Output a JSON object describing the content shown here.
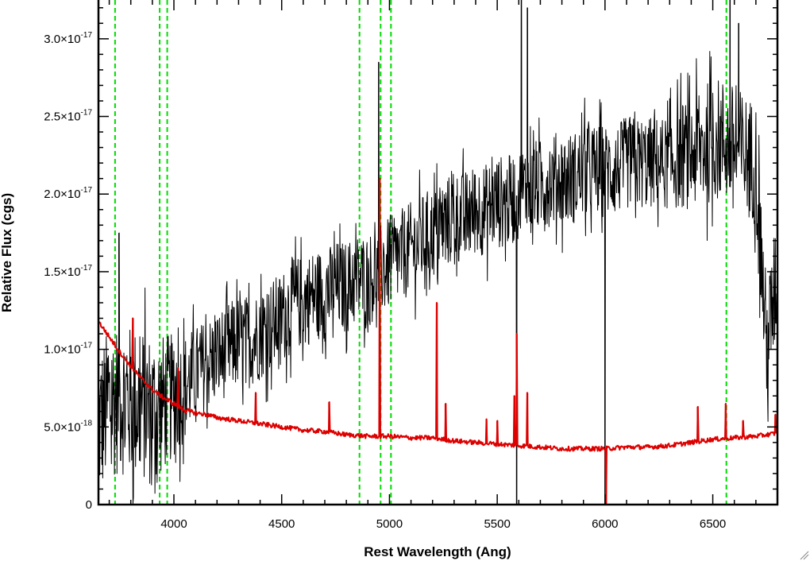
{
  "chart_data": {
    "type": "line",
    "title": "",
    "xlabel": "Rest Wavelength (Ang)",
    "ylabel": "Relative Flux (cgs)",
    "xlim": [
      3650,
      6800
    ],
    "ylim": [
      0,
      3.25e-17
    ],
    "x_ticks": [
      {
        "value": 4000,
        "label": "4000"
      },
      {
        "value": 4500,
        "label": "4500"
      },
      {
        "value": 5000,
        "label": "5000"
      },
      {
        "value": 5500,
        "label": "5500"
      },
      {
        "value": 6000,
        "label": "6000"
      },
      {
        "value": 6500,
        "label": "6500"
      }
    ],
    "y_ticks": [
      {
        "value": 0,
        "mantissa": "0",
        "exponent": ""
      },
      {
        "value": 5e-18,
        "mantissa": "5.0×10",
        "exponent": "-18"
      },
      {
        "value": 1e-17,
        "mantissa": "1.0×10",
        "exponent": "-17"
      },
      {
        "value": 1.5e-17,
        "mantissa": "1.5×10",
        "exponent": "-17"
      },
      {
        "value": 2e-17,
        "mantissa": "2.0×10",
        "exponent": "-17"
      },
      {
        "value": 2.5e-17,
        "mantissa": "2.5×10",
        "exponent": "-17"
      },
      {
        "value": 3e-17,
        "mantissa": "3.0×10",
        "exponent": "-17"
      }
    ],
    "x_minor_step": 100,
    "y_minor_step": 1e-18,
    "reference_lines": {
      "color": "#00dd00",
      "style": "dashed",
      "x": [
        3727,
        3934,
        3969,
        4861,
        4959,
        5007,
        6563
      ]
    },
    "series": [
      {
        "color": "#000000",
        "style": "noisy-line",
        "x": [
          3650,
          3700,
          3750,
          3800,
          3850,
          3900,
          3950,
          4000,
          4050,
          4100,
          4150,
          4200,
          4250,
          4300,
          4350,
          4400,
          4450,
          4500,
          4550,
          4600,
          4650,
          4700,
          4750,
          4800,
          4850,
          4900,
          4950,
          5000,
          5050,
          5100,
          5150,
          5200,
          5250,
          5300,
          5350,
          5400,
          5450,
          5500,
          5550,
          5600,
          5650,
          5700,
          5750,
          5800,
          5850,
          5900,
          5950,
          6000,
          6050,
          6100,
          6150,
          6200,
          6250,
          6300,
          6350,
          6400,
          6450,
          6500,
          6550,
          6600,
          6650,
          6700,
          6750,
          6800
        ],
        "y": [
          5e-18,
          6.5e-18,
          7e-18,
          6.5e-18,
          6.5e-18,
          6e-18,
          6.5e-18,
          7e-18,
          7.5e-18,
          8.5e-18,
          9e-18,
          9.5e-18,
          1e-17,
          1.05e-17,
          1.05e-17,
          1.1e-17,
          1.15e-17,
          1.2e-17,
          1.3e-17,
          1.3e-17,
          1.35e-17,
          1.35e-17,
          1.4e-17,
          1.4e-17,
          1.45e-17,
          1.45e-17,
          1.5e-17,
          1.55e-17,
          1.6e-17,
          1.65e-17,
          1.7e-17,
          1.75e-17,
          1.8e-17,
          1.85e-17,
          1.85e-17,
          1.9e-17,
          1.9e-17,
          1.95e-17,
          1.95e-17,
          2e-17,
          2.05e-17,
          2.05e-17,
          2.1e-17,
          2.1e-17,
          2.1e-17,
          2.15e-17,
          2.15e-17,
          2.15e-17,
          2.15e-17,
          2.2e-17,
          2.2e-17,
          2.2e-17,
          2.2e-17,
          2.2e-17,
          2.25e-17,
          2.25e-17,
          2.3e-17,
          2.35e-17,
          2.35e-17,
          2.3e-17,
          2.25e-17,
          2.2e-17,
          1e-17,
          1.5e-17
        ],
        "noise_amplitude": [
          5e-18,
          5e-18,
          5e-18,
          5e-18,
          5e-18,
          5e-18,
          4.5e-18,
          4e-18,
          3.5e-18,
          3e-18,
          3e-18,
          3e-18,
          3e-18,
          3e-18,
          3e-18,
          3e-18,
          3e-18,
          3e-18,
          3e-18,
          3e-18,
          3e-18,
          3e-18,
          3e-18,
          3e-18,
          3e-18,
          3e-18,
          3e-18,
          3e-18,
          3e-18,
          3e-18,
          3e-18,
          3e-18,
          3e-18,
          3e-18,
          3e-18,
          3e-18,
          3e-18,
          3e-18,
          3e-18,
          3e-18,
          3e-18,
          3e-18,
          3e-18,
          3e-18,
          3e-18,
          3e-18,
          3e-18,
          3e-18,
          3e-18,
          3e-18,
          3e-18,
          3e-18,
          3e-18,
          3e-18,
          3.5e-18,
          3.5e-18,
          4e-18,
          4e-18,
          4e-18,
          4e-18,
          4e-18,
          4e-18,
          4e-18,
          4e-18
        ],
        "spikes": [
          {
            "x": 3745,
            "y": 1.75e-17
          },
          {
            "x": 4950,
            "y": 2.85e-17
          },
          {
            "x": 5590,
            "y": 0
          },
          {
            "x": 5612,
            "y": 3.25e-17
          },
          {
            "x": 5640,
            "y": 3.2e-17
          },
          {
            "x": 6000,
            "y": 0
          },
          {
            "x": 6580,
            "y": 3.25e-17
          },
          {
            "x": 6620,
            "y": 3.1e-17
          }
        ]
      },
      {
        "color": "#dd0000",
        "style": "line",
        "x": [
          3650,
          3700,
          3750,
          3800,
          3850,
          3900,
          3950,
          4000,
          4050,
          4100,
          4150,
          4200,
          4300,
          4400,
          4500,
          4600,
          4700,
          4800,
          4900,
          5000,
          5100,
          5200,
          5300,
          5400,
          5500,
          5600,
          5700,
          5800,
          5900,
          6000,
          6100,
          6200,
          6300,
          6400,
          6500,
          6600,
          6700,
          6800
        ],
        "y": [
          1.18e-17,
          1.08e-17,
          9.8e-18,
          8.9e-18,
          8.1e-18,
          7.4e-18,
          6.9e-18,
          6.5e-18,
          6.1e-18,
          5.9e-18,
          5.8e-18,
          5.6e-18,
          5.4e-18,
          5.2e-18,
          5e-18,
          4.8e-18,
          4.7e-18,
          4.5e-18,
          4.4e-18,
          4.4e-18,
          4.3e-18,
          4.3e-18,
          4.1e-18,
          4e-18,
          3.9e-18,
          3.8e-18,
          3.7e-18,
          3.6e-18,
          3.6e-18,
          3.6e-18,
          3.7e-18,
          3.7e-18,
          3.8e-18,
          4e-18,
          4.2e-18,
          4.3e-18,
          4.4e-18,
          4.6e-18
        ],
        "spikes": [
          {
            "x": 3810,
            "y": 1.2e-17
          },
          {
            "x": 4020,
            "y": 8.8e-18
          },
          {
            "x": 4380,
            "y": 7.2e-18
          },
          {
            "x": 4720,
            "y": 6.6e-18
          },
          {
            "x": 4955,
            "y": 2.1e-17
          },
          {
            "x": 5220,
            "y": 1.3e-17
          },
          {
            "x": 5260,
            "y": 6.5e-18
          },
          {
            "x": 5450,
            "y": 5.5e-18
          },
          {
            "x": 5500,
            "y": 5.4e-18
          },
          {
            "x": 5580,
            "y": 7e-18
          },
          {
            "x": 5590,
            "y": 1.1e-17
          },
          {
            "x": 5640,
            "y": 7.2e-18
          },
          {
            "x": 6005,
            "y": 0
          },
          {
            "x": 6430,
            "y": 6.3e-18
          },
          {
            "x": 6560,
            "y": 6.5e-18
          },
          {
            "x": 6640,
            "y": 5.4e-18
          },
          {
            "x": 6790,
            "y": 5.8e-18
          }
        ]
      }
    ]
  }
}
